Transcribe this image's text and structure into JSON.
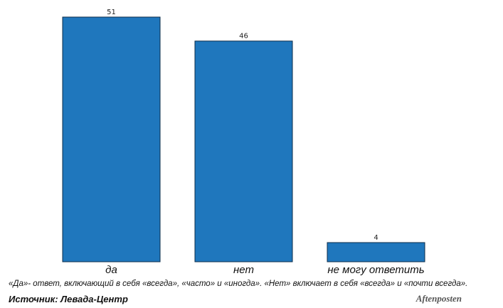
{
  "chart_data": {
    "type": "bar",
    "categories": [
      "да",
      "нет",
      "не могу ответить"
    ],
    "values": [
      51,
      46,
      4
    ],
    "ylim": [
      0,
      51
    ],
    "grid": false,
    "bar_color": "#1f77bd",
    "bar_edge_color": "#0d2e4a"
  },
  "footer": {
    "note": "«Да»- ответ, включающий в себя «всегда», «часто» и «иногда». «Нет» включает в себя «всегда» и «почти всегда».",
    "source": "Источник: Левада-Центр",
    "logo": "Aftenposten"
  }
}
